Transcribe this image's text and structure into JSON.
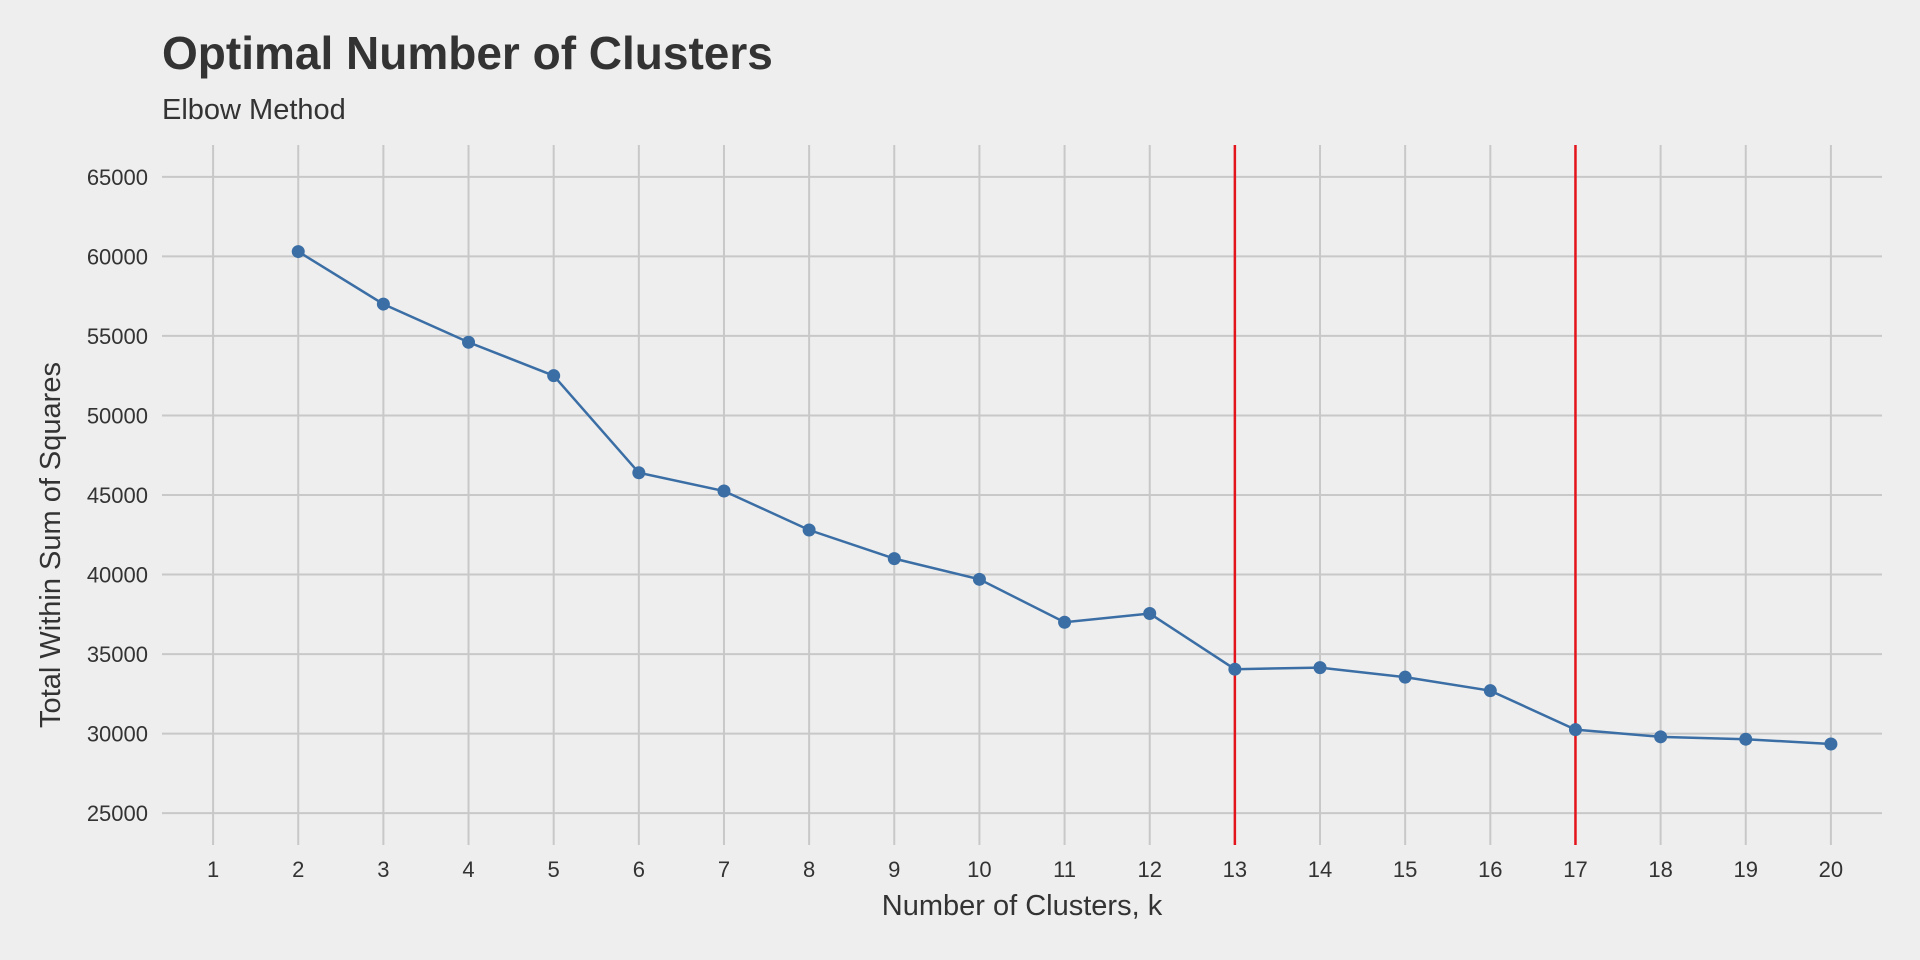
{
  "colors": {
    "background": "#eeeeee",
    "grid": "#c8c8c8",
    "series": "#3a6ea5",
    "reference_line": "#e3141b",
    "text": "#333333"
  },
  "chart_data": {
    "type": "line",
    "title": "Optimal Number of Clusters",
    "subtitle": "Elbow Method",
    "xlabel": "Number of Clusters, k",
    "ylabel": "Total Within Sum of Squares",
    "x_ticks": [
      1,
      2,
      3,
      4,
      5,
      6,
      7,
      8,
      9,
      10,
      11,
      12,
      13,
      14,
      15,
      16,
      17,
      18,
      19,
      20
    ],
    "y_ticks": [
      25000,
      30000,
      35000,
      40000,
      45000,
      50000,
      55000,
      60000,
      65000
    ],
    "xlim": [
      0.4,
      20.6
    ],
    "ylim": [
      23000,
      67000
    ],
    "grid": true,
    "legend": "none",
    "series": [
      {
        "x": [
          2,
          3,
          4,
          5,
          6,
          7,
          8,
          9,
          10,
          11,
          12,
          13,
          14,
          15,
          16,
          17,
          18,
          19,
          20
        ],
        "values": [
          60300,
          57000,
          54600,
          52500,
          46400,
          45250,
          42800,
          41000,
          39700,
          37000,
          37550,
          34050,
          34150,
          33550,
          32700,
          30250,
          29800,
          29650,
          29350
        ]
      }
    ],
    "vertical_lines": [
      13,
      17
    ]
  }
}
